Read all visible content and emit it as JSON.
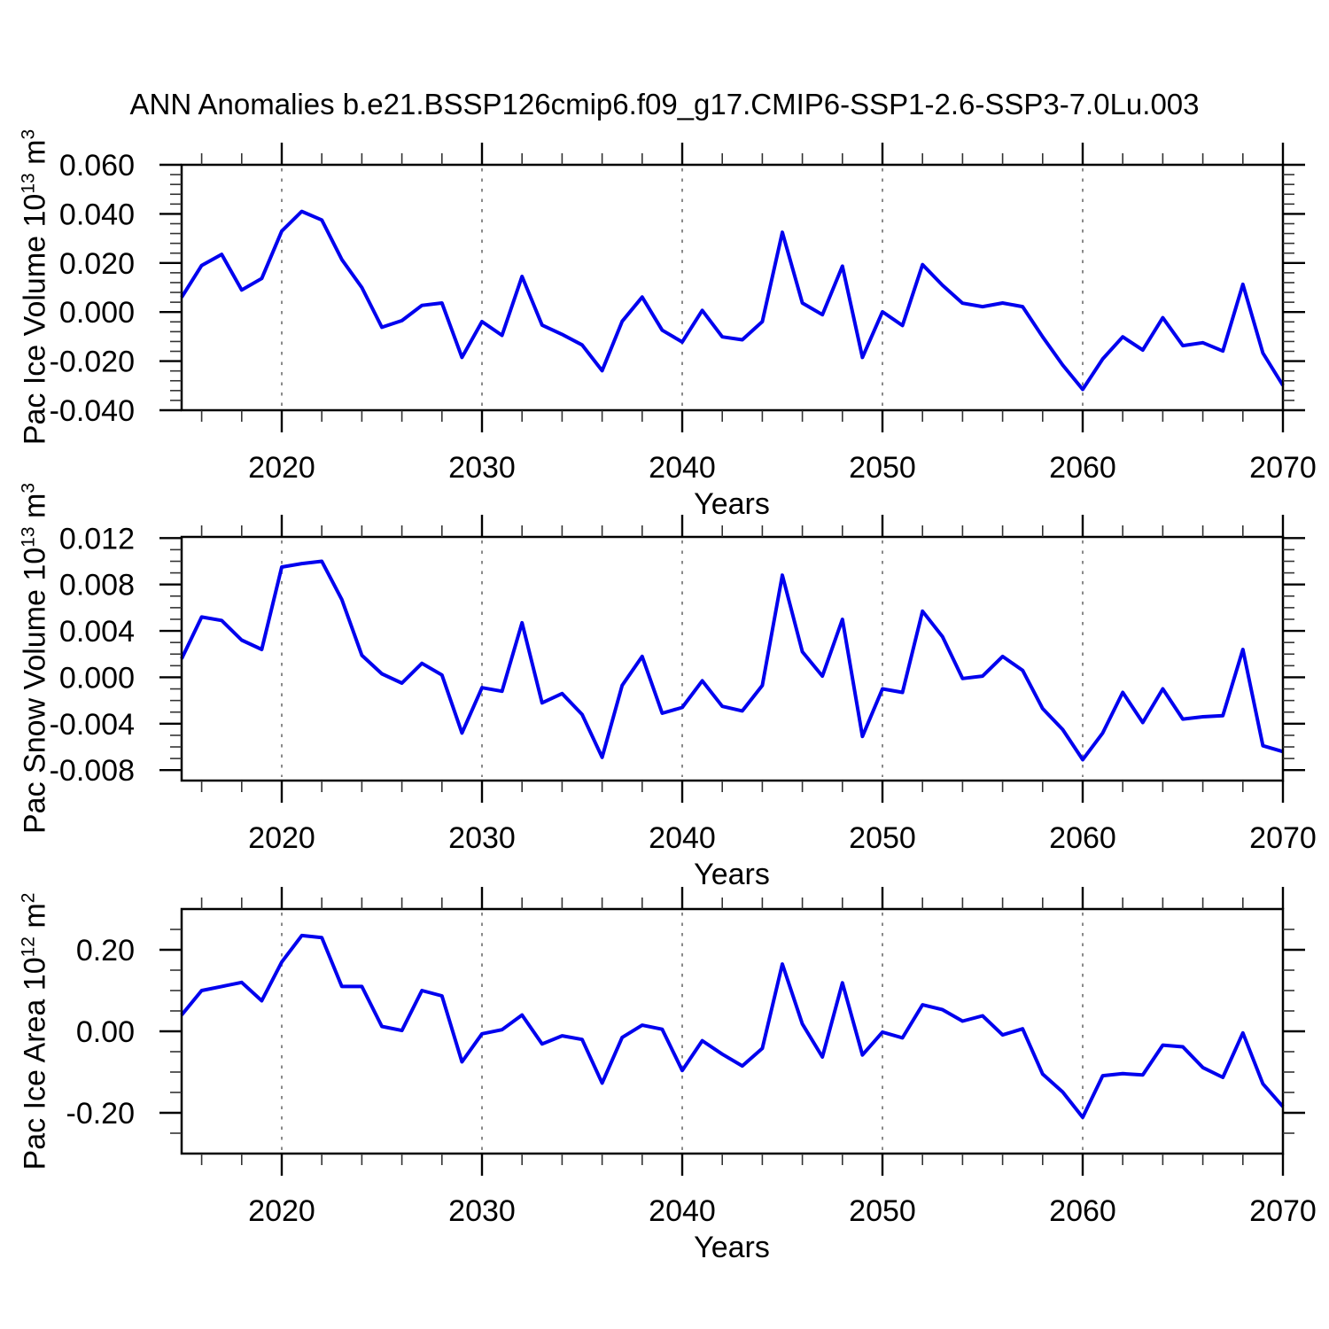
{
  "title": "ANN Anomalies b.e21.BSSP126cmip6.f09_g17.CMIP6-SSP1-2.6-SSP3-7.0Lu.003",
  "style": {
    "line_color": "#0000ee",
    "grid_color": "#8a8a8a",
    "axis_color": "#000000"
  },
  "xaxis": {
    "label": "Years",
    "range": [
      2015,
      2070
    ],
    "tick_labels": [
      "2020",
      "2030",
      "2040",
      "2050",
      "2060",
      "2070"
    ],
    "tick_values": [
      2020,
      2030,
      2040,
      2050,
      2060,
      2070
    ],
    "minor_step": 2,
    "grid_years": [
      2020,
      2030,
      2040,
      2050,
      2060
    ]
  },
  "years": [
    2015,
    2016,
    2017,
    2018,
    2019,
    2020,
    2021,
    2022,
    2023,
    2024,
    2025,
    2026,
    2027,
    2028,
    2029,
    2030,
    2031,
    2032,
    2033,
    2034,
    2035,
    2036,
    2037,
    2038,
    2039,
    2040,
    2041,
    2042,
    2043,
    2044,
    2045,
    2046,
    2047,
    2048,
    2049,
    2050,
    2051,
    2052,
    2053,
    2054,
    2055,
    2056,
    2057,
    2058,
    2059,
    2060,
    2061,
    2062,
    2063,
    2064,
    2065,
    2066,
    2067,
    2068,
    2069,
    2070
  ],
  "chart_data": [
    {
      "type": "line",
      "name": "pac-ice-volume",
      "ylabel": "Pac Ice Volume 10^13 m^3",
      "ylabel_parts": {
        "pre": "Pac Ice Volume 10",
        "exp1": "13",
        "mid": " m",
        "exp2": "3"
      },
      "xlabel": "Years",
      "ylim": [
        -0.04,
        0.06
      ],
      "y_ticks": {
        "labels": [
          "0.060",
          "0.040",
          "0.020",
          "0.000",
          "-0.020",
          "-0.040"
        ],
        "values": [
          0.06,
          0.04,
          0.02,
          0.0,
          -0.02,
          -0.04
        ],
        "minor_step": 0.004
      },
      "values": [
        0.006,
        0.019,
        0.0235,
        0.009,
        0.0137,
        0.033,
        0.041,
        0.0375,
        0.0214,
        0.01,
        -0.0062,
        -0.0035,
        0.0027,
        0.0037,
        -0.0185,
        -0.0039,
        -0.0095,
        0.0145,
        -0.0053,
        -0.0091,
        -0.0134,
        -0.0239,
        -0.0038,
        0.0061,
        -0.0074,
        -0.0122,
        0.0007,
        -0.0101,
        -0.0113,
        -0.0039,
        0.0325,
        0.0037,
        -0.0011,
        0.0187,
        -0.0185,
        0.0001,
        -0.0055,
        0.0193,
        0.0109,
        0.0036,
        0.0022,
        0.0037,
        0.0022,
        -0.0101,
        -0.0216,
        -0.0315,
        -0.0191,
        -0.0101,
        -0.0155,
        -0.0023,
        -0.0137,
        -0.0125,
        -0.0159,
        0.0113,
        -0.0167,
        -0.0299
      ]
    },
    {
      "type": "line",
      "name": "pac-snow-volume",
      "ylabel": "Pac Snow Volume 10^13 m^3",
      "ylabel_parts": {
        "pre": "Pac Snow Volume 10",
        "exp1": "13",
        "mid": " m",
        "exp2": "3"
      },
      "xlabel": "Years",
      "ylim": [
        -0.0089,
        0.0121
      ],
      "y_ticks": {
        "labels": [
          "0.012",
          "0.008",
          "0.004",
          "0.000",
          "-0.004",
          "-0.008"
        ],
        "values": [
          0.012,
          0.008,
          0.004,
          0.0,
          -0.004,
          -0.008
        ],
        "minor_step": 0.001
      },
      "values": [
        0.0016,
        0.0052,
        0.0049,
        0.0032,
        0.0024,
        0.0095,
        0.0098,
        0.01,
        0.0067,
        0.0019,
        0.0003,
        -0.0005,
        0.0012,
        0.0002,
        -0.0048,
        -0.0009,
        -0.0012,
        0.0047,
        -0.0022,
        -0.0014,
        -0.0032,
        -0.0069,
        -0.0007,
        0.0018,
        -0.0031,
        -0.0026,
        -0.0003,
        -0.0025,
        -0.0029,
        -0.0007,
        0.0088,
        0.0022,
        0.0001,
        0.005,
        -0.0051,
        -0.001,
        -0.0013,
        0.0057,
        0.0035,
        -0.0001,
        0.0001,
        0.0018,
        0.0006,
        -0.0027,
        -0.0045,
        -0.0071,
        -0.0048,
        -0.0013,
        -0.0039,
        -0.001,
        -0.0036,
        -0.0034,
        -0.0033,
        0.0024,
        -0.0059,
        -0.0064
      ]
    },
    {
      "type": "line",
      "name": "pac-ice-area",
      "ylabel": "Pac Ice Area 10^12 m^2",
      "ylabel_parts": {
        "pre": "Pac Ice Area 10",
        "exp1": "12",
        "mid": " m",
        "exp2": "2"
      },
      "xlabel": "Years",
      "ylim": [
        -0.3,
        0.3
      ],
      "y_ticks": {
        "labels": [
          "0.20",
          "0.00",
          "-0.20"
        ],
        "values": [
          0.2,
          0.0,
          -0.2
        ],
        "minor_step": 0.05
      },
      "values": [
        0.04,
        0.1,
        0.11,
        0.12,
        0.075,
        0.17,
        0.235,
        0.23,
        0.11,
        0.11,
        0.012,
        0.002,
        0.1,
        0.087,
        -0.075,
        -0.006,
        0.004,
        0.04,
        -0.031,
        -0.011,
        -0.02,
        -0.127,
        -0.015,
        0.015,
        0.005,
        -0.096,
        -0.023,
        -0.056,
        -0.085,
        -0.042,
        0.165,
        0.018,
        -0.063,
        0.119,
        -0.058,
        -0.002,
        -0.016,
        0.065,
        0.053,
        0.025,
        0.038,
        -0.009,
        0.006,
        -0.105,
        -0.149,
        -0.211,
        -0.109,
        -0.104,
        -0.107,
        -0.034,
        -0.038,
        -0.089,
        -0.113,
        -0.004,
        -0.129,
        -0.185
      ]
    }
  ]
}
